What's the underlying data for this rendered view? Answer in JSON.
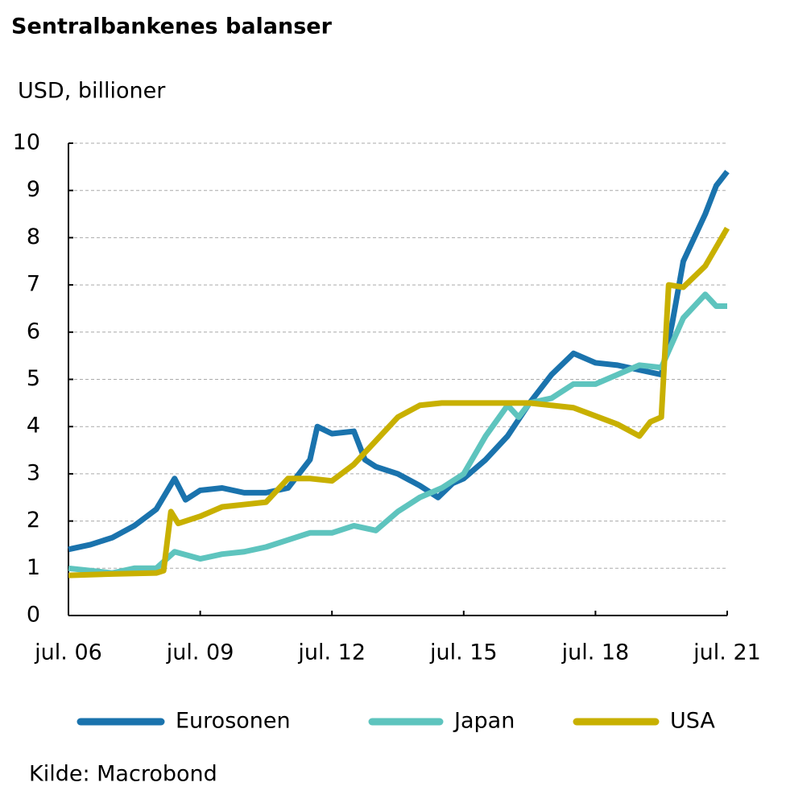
{
  "chart_data": {
    "type": "line",
    "title": "Sentralbankenes balanser",
    "y_label": "USD, billioner",
    "source": "Kilde: Macrobond",
    "xlim": [
      "2006-07",
      "2021-07"
    ],
    "xticks": [
      {
        "value": "2006-07",
        "label": "jul. 06"
      },
      {
        "value": "2009-07",
        "label": "jul. 09"
      },
      {
        "value": "2012-07",
        "label": "jul. 12"
      },
      {
        "value": "2015-07",
        "label": "jul. 15"
      },
      {
        "value": "2018-07",
        "label": "jul. 18"
      },
      {
        "value": "2021-07",
        "label": "jul. 21"
      }
    ],
    "ylim": [
      0,
      10
    ],
    "yticks": [
      0,
      1,
      2,
      3,
      4,
      5,
      6,
      7,
      8,
      9,
      10
    ],
    "grid": true,
    "legend": "bottom",
    "series": [
      {
        "name": "Eurosonen",
        "color": "#1a73ad",
        "x": [
          "2006-07",
          "2007-01",
          "2007-07",
          "2008-01",
          "2008-07",
          "2008-12",
          "2009-03",
          "2009-07",
          "2010-01",
          "2010-07",
          "2011-01",
          "2011-07",
          "2012-01",
          "2012-03",
          "2012-07",
          "2013-01",
          "2013-04",
          "2013-07",
          "2014-01",
          "2014-07",
          "2014-12",
          "2015-04",
          "2015-07",
          "2016-01",
          "2016-07",
          "2017-01",
          "2017-07",
          "2018-01",
          "2018-07",
          "2019-01",
          "2019-07",
          "2020-01",
          "2020-04",
          "2020-07",
          "2021-01",
          "2021-04",
          "2021-07"
        ],
        "values": [
          1.4,
          1.5,
          1.65,
          1.9,
          2.25,
          2.9,
          2.45,
          2.65,
          2.7,
          2.6,
          2.6,
          2.7,
          3.3,
          4.0,
          3.85,
          3.9,
          3.3,
          3.15,
          3.0,
          2.75,
          2.5,
          2.8,
          2.9,
          3.3,
          3.8,
          4.5,
          5.1,
          5.55,
          5.35,
          5.3,
          5.2,
          5.1,
          6.2,
          7.5,
          8.5,
          9.1,
          9.4
        ]
      },
      {
        "name": "Japan",
        "color": "#5ec4be",
        "x": [
          "2006-07",
          "2007-01",
          "2007-07",
          "2008-01",
          "2008-07",
          "2008-12",
          "2009-07",
          "2010-01",
          "2010-07",
          "2011-01",
          "2011-07",
          "2012-01",
          "2012-07",
          "2013-01",
          "2013-07",
          "2014-01",
          "2014-07",
          "2015-01",
          "2015-07",
          "2016-01",
          "2016-07",
          "2016-10",
          "2017-01",
          "2017-07",
          "2018-01",
          "2018-07",
          "2019-01",
          "2019-07",
          "2020-01",
          "2020-07",
          "2021-01",
          "2021-04",
          "2021-07"
        ],
        "values": [
          1.0,
          0.95,
          0.9,
          1.0,
          1.0,
          1.35,
          1.2,
          1.3,
          1.35,
          1.45,
          1.6,
          1.75,
          1.75,
          1.9,
          1.8,
          2.2,
          2.5,
          2.7,
          3.0,
          3.8,
          4.45,
          4.2,
          4.5,
          4.6,
          4.9,
          4.9,
          5.1,
          5.3,
          5.25,
          6.3,
          6.8,
          6.55,
          6.55
        ]
      },
      {
        "name": "USA",
        "color": "#c8b000",
        "x": [
          "2006-07",
          "2007-07",
          "2008-07",
          "2008-09",
          "2008-11",
          "2009-01",
          "2009-07",
          "2010-01",
          "2010-07",
          "2011-01",
          "2011-07",
          "2012-01",
          "2012-07",
          "2013-01",
          "2013-07",
          "2014-01",
          "2014-07",
          "2015-01",
          "2016-01",
          "2017-01",
          "2018-01",
          "2019-01",
          "2019-07",
          "2019-10",
          "2020-01",
          "2020-03",
          "2020-07",
          "2021-01",
          "2021-07"
        ],
        "values": [
          0.85,
          0.88,
          0.9,
          0.95,
          2.2,
          1.95,
          2.1,
          2.3,
          2.35,
          2.4,
          2.9,
          2.9,
          2.85,
          3.2,
          3.7,
          4.2,
          4.45,
          4.5,
          4.5,
          4.5,
          4.4,
          4.05,
          3.8,
          4.1,
          4.2,
          7.0,
          6.95,
          7.4,
          8.2
        ]
      }
    ]
  }
}
